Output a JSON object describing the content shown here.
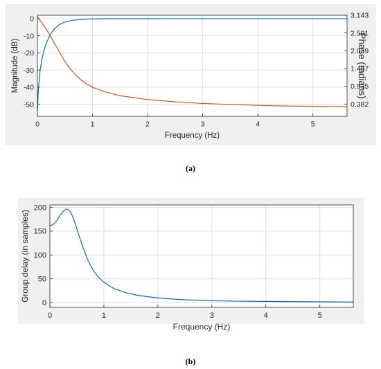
{
  "colors": {
    "blue": "#0072bd",
    "orange": "#d95319",
    "axis": "#262626",
    "grid": "#dfdfdf",
    "panel_bg": "#f0f0f0"
  },
  "figure_a": {
    "caption": "(a)"
  },
  "figure_b": {
    "caption": "(b)"
  },
  "chart_data": [
    {
      "type": "line",
      "title": "",
      "xlabel": "Frequency (Hz)",
      "ylabel": "Magnitude (dB)",
      "ylabel_right": "Phase (radians)",
      "xlim": [
        0,
        5.62
      ],
      "ylim": [
        -57,
        2
      ],
      "ylim_right": [
        0,
        3.143
      ],
      "xticks": [
        "0",
        "1",
        "2",
        "3",
        "4",
        "5"
      ],
      "yticks": [
        "0",
        "-10",
        "-20",
        "-30",
        "-40",
        "-50"
      ],
      "yticks_right": [
        "3.143",
        "2.591",
        "2.039",
        "1.487",
        "0.935",
        "0.382"
      ],
      "grid": true,
      "series": [
        {
          "axis": "left",
          "color": "#0072bd",
          "x": [
            0,
            0.02,
            0.05,
            0.08,
            0.12,
            0.16,
            0.2,
            0.25,
            0.3,
            0.35,
            0.4,
            0.5,
            0.6,
            0.7,
            0.8,
            0.9,
            1.0,
            1.2,
            1.5,
            2.0,
            3.0,
            4.0,
            5.0,
            5.62
          ],
          "y": [
            -54,
            -40,
            -30,
            -24,
            -18.5,
            -14.5,
            -11.5,
            -8.5,
            -6.3,
            -4.7,
            -3.4,
            -2.0,
            -1.2,
            -0.75,
            -0.45,
            -0.28,
            -0.18,
            -0.08,
            -0.03,
            -0.01,
            0,
            0,
            0,
            0
          ]
        },
        {
          "axis": "right",
          "color": "#d95319",
          "x": [
            0,
            0.05,
            0.1,
            0.2,
            0.3,
            0.4,
            0.5,
            0.6,
            0.7,
            0.8,
            0.9,
            1.0,
            1.2,
            1.5,
            2.0,
            2.5,
            3.0,
            3.5,
            4.0,
            4.5,
            5.0,
            5.62
          ],
          "y": [
            3.1,
            2.98,
            2.86,
            2.6,
            2.3,
            2.0,
            1.7,
            1.47,
            1.27,
            1.12,
            1.0,
            0.9,
            0.77,
            0.64,
            0.52,
            0.45,
            0.4,
            0.37,
            0.34,
            0.32,
            0.31,
            0.3
          ]
        }
      ]
    },
    {
      "type": "line",
      "title": "",
      "xlabel": "Frequency (Hz)",
      "ylabel": "Group delay (in samples)",
      "xlim": [
        0,
        5.62
      ],
      "ylim": [
        -10,
        205
      ],
      "xticks": [
        "0",
        "1",
        "2",
        "3",
        "4",
        "5"
      ],
      "yticks": [
        "200",
        "150",
        "100",
        "50",
        "0"
      ],
      "grid": true,
      "series": [
        {
          "color": "#0072bd",
          "x": [
            0,
            0.05,
            0.1,
            0.15,
            0.2,
            0.25,
            0.3,
            0.33,
            0.36,
            0.4,
            0.45,
            0.5,
            0.6,
            0.7,
            0.8,
            0.9,
            1.0,
            1.1,
            1.2,
            1.4,
            1.6,
            1.8,
            2.0,
            2.2,
            2.5,
            3.0,
            3.5,
            4.0,
            4.5,
            5.0,
            5.62
          ],
          "y": [
            162,
            163,
            168,
            176,
            185,
            192,
            196,
            196,
            193,
            186,
            172,
            155,
            120,
            90,
            68,
            53,
            43,
            35,
            29,
            21,
            16,
            12.5,
            10,
            8,
            6,
            4,
            3,
            2.5,
            2,
            1.6,
            1.3
          ]
        }
      ]
    }
  ]
}
